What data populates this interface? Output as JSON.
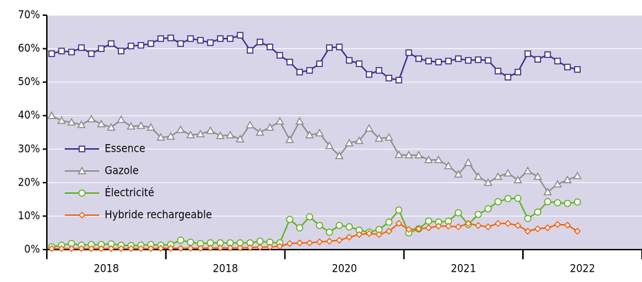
{
  "chart_data": {
    "type": "line",
    "categories": [
      null,
      null,
      null,
      null,
      null,
      null,
      null,
      null,
      null,
      null,
      null,
      null,
      null,
      null,
      null,
      null,
      null,
      null,
      null,
      null,
      null,
      null,
      null,
      null,
      null,
      null,
      null,
      null,
      null,
      null,
      null,
      null,
      null,
      null,
      null,
      null,
      null,
      null,
      null,
      null,
      null,
      null,
      null,
      null,
      null,
      null,
      null,
      null,
      null,
      null,
      null,
      null,
      null,
      null
    ],
    "x_group_labels": [
      "2018",
      "2018",
      "2020",
      "2021",
      "2022"
    ],
    "series": [
      {
        "name": "Essence",
        "color": "#3b2a8c",
        "marker": "square",
        "values": [
          58.5,
          59.3,
          59,
          60.3,
          58.5,
          60,
          61.5,
          59.3,
          60.8,
          61,
          61.5,
          63,
          63.2,
          61.5,
          63,
          62.5,
          61.8,
          63,
          63,
          64,
          59.5,
          62,
          60.5,
          58,
          56,
          53,
          53.5,
          55.5,
          60.3,
          60.5,
          56.5,
          55.5,
          52.3,
          53.5,
          51.2,
          50.6,
          58.8,
          57,
          56.3,
          56,
          56.3,
          57,
          56.5,
          56.7,
          56.5,
          53.3,
          51.5,
          53,
          58.5,
          56.8,
          58.2,
          56.3,
          54.5,
          53.8
        ]
      },
      {
        "name": "Gazole",
        "color": "#8c8c8c",
        "marker": "triangle",
        "values": [
          40,
          38.5,
          38,
          37.3,
          39,
          37.5,
          36.5,
          38.8,
          36.8,
          37,
          36.5,
          33.5,
          33.8,
          35.8,
          34.2,
          34.5,
          35.5,
          34,
          34.2,
          33,
          37.2,
          35,
          36.5,
          38.3,
          32.8,
          38.3,
          34.2,
          34.8,
          31,
          28,
          31.8,
          32.5,
          36.2,
          33.2,
          33.5,
          28.3,
          28.2,
          28.2,
          26.8,
          26.8,
          25,
          22.5,
          26,
          21.8,
          20,
          21.8,
          22.8,
          20.8,
          23.5,
          21.8,
          17.2,
          19.5,
          20.8,
          22
        ]
      },
      {
        "name": "Électricité",
        "color": "#5cb31a",
        "marker": "circle",
        "values": [
          0.8,
          1.3,
          1.8,
          1.3,
          1.5,
          1.5,
          1.7,
          1.3,
          1.2,
          1.3,
          1.5,
          1.3,
          1.5,
          2.8,
          2.2,
          1.8,
          2,
          2,
          2,
          2,
          2,
          2.5,
          2.2,
          2,
          9,
          6.5,
          9.8,
          7.2,
          5.2,
          7.2,
          6.8,
          5.8,
          5.2,
          6,
          8.2,
          11.8,
          5,
          6.2,
          8.5,
          8.2,
          8.5,
          11,
          7.5,
          10.5,
          12.2,
          14.3,
          15.2,
          15.3,
          9.3,
          11.2,
          14.3,
          14,
          13.8,
          14.2
        ]
      },
      {
        "name": "Hybride rechargeable",
        "color": "#f0620f",
        "marker": "diamond",
        "values": [
          0.3,
          0.3,
          0.3,
          0.3,
          0.3,
          0.3,
          0.3,
          0.3,
          0.3,
          0.3,
          0.3,
          0.4,
          0.4,
          0.4,
          0.4,
          0.4,
          0.5,
          0.5,
          0.5,
          0.5,
          0.6,
          0.7,
          0.8,
          1,
          1.8,
          2,
          2,
          2.3,
          2.5,
          2.8,
          3.7,
          4.5,
          4.8,
          4.5,
          5.5,
          7.8,
          6,
          6.2,
          6.5,
          7,
          7,
          6.8,
          7.8,
          7.2,
          6.8,
          7.8,
          7.8,
          7.2,
          5.5,
          6.2,
          6.5,
          7.5,
          7.3,
          5.5
        ]
      }
    ],
    "ylim": [
      0,
      70
    ],
    "yticks": [
      {
        "value": 0,
        "label": "0%"
      },
      {
        "value": 10,
        "label": "10%"
      },
      {
        "value": 20,
        "label": "20%"
      },
      {
        "value": 30,
        "label": "30%"
      },
      {
        "value": 40,
        "label": "40%"
      },
      {
        "value": 50,
        "label": "50%"
      },
      {
        "value": 60,
        "label": "60%"
      },
      {
        "value": 70,
        "label": "70%"
      }
    ],
    "grid": true,
    "legend": "lower-left",
    "background": "#d9d5e9"
  }
}
